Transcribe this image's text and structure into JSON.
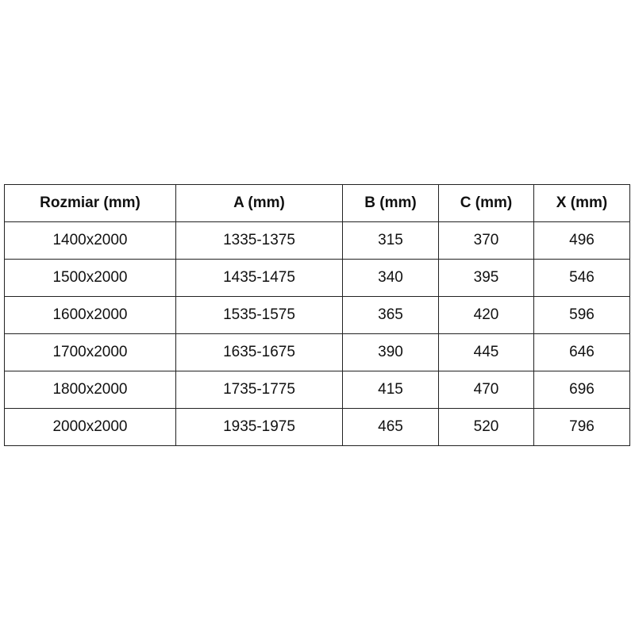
{
  "table": {
    "headers": [
      "Rozmiar (mm)",
      "A (mm)",
      "B (mm)",
      "C (mm)",
      "X (mm)"
    ],
    "rows": [
      [
        "1400x2000",
        "1335-1375",
        "315",
        "370",
        "496"
      ],
      [
        "1500x2000",
        "1435-1475",
        "340",
        "395",
        "546"
      ],
      [
        "1600x2000",
        "1535-1575",
        "365",
        "420",
        "596"
      ],
      [
        "1700x2000",
        "1635-1675",
        "390",
        "445",
        "646"
      ],
      [
        "1800x2000",
        "1735-1775",
        "415",
        "470",
        "696"
      ],
      [
        "2000x2000",
        "1935-1975",
        "465",
        "520",
        "796"
      ]
    ]
  }
}
